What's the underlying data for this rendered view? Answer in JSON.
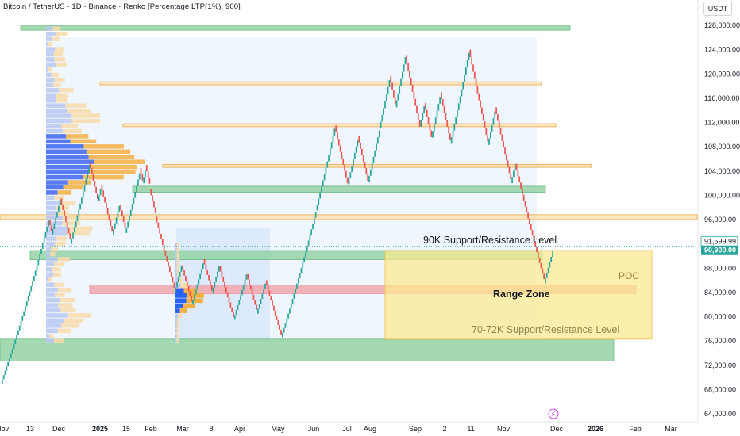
{
  "header": {
    "title": "Bitcoin / TetherUS · 1D · Binance · Renko [Percentage LTP(1%), 900]",
    "currency": "USDT"
  },
  "colors": {
    "up": "#26a69a",
    "down": "#ef5350",
    "green_zone": "#8fcf9f",
    "red_zone": "#f2a2a6",
    "orange_line": "#f7c77a",
    "range_zone": "#fbe98e",
    "vp_blue": "#2962ff",
    "vp_orange": "#f5b042",
    "last_price_bg": "#26a69a"
  },
  "chart_data": {
    "type": "line",
    "title": "Bitcoin / TetherUS · 1D · Binance · Renko [Percentage LTP(1%), 900]",
    "y_axis": {
      "ticks": [
        "64,000.00",
        "68,000.00",
        "72,000.00",
        "76,000.00",
        "80,000.00",
        "84,000.00",
        "88,000.00",
        "92,000.00",
        "96,000.00",
        "100,000.00",
        "104,000.00",
        "108,000.00",
        "112,000.00",
        "116,000.00",
        "120,000.00",
        "124,000.00",
        "128,000.00"
      ],
      "ylim": [
        62000,
        130500
      ],
      "position": "right"
    },
    "x_axis": {
      "ticks": [
        {
          "label": "Nov",
          "bold": false
        },
        {
          "label": "13",
          "bold": false
        },
        {
          "label": "Dec",
          "bold": false
        },
        {
          "label": "2025",
          "bold": true
        },
        {
          "label": "15",
          "bold": false
        },
        {
          "label": "Feb",
          "bold": false
        },
        {
          "label": "Mar",
          "bold": false
        },
        {
          "label": "8",
          "bold": false
        },
        {
          "label": "Apr",
          "bold": false
        },
        {
          "label": "May",
          "bold": false
        },
        {
          "label": "Jun",
          "bold": false
        },
        {
          "label": "Jul",
          "bold": false
        },
        {
          "label": "Aug",
          "bold": false
        },
        {
          "label": "Sep",
          "bold": false
        },
        {
          "label": "2",
          "bold": false
        },
        {
          "label": "11",
          "bold": false
        },
        {
          "label": "Nov",
          "bold": false
        },
        {
          "label": "Dec",
          "bold": false
        },
        {
          "label": "2026",
          "bold": true
        },
        {
          "label": "Feb",
          "bold": false
        },
        {
          "label": "Mar",
          "bold": false
        }
      ]
    },
    "series": [
      {
        "brick_pct": 1,
        "path": [
          [
            0,
            69000
          ],
          [
            1,
            96000
          ],
          [
            2,
            93500
          ],
          [
            3,
            99500
          ],
          [
            4,
            92000
          ],
          [
            5,
            105500
          ],
          [
            6,
            99000
          ],
          [
            7,
            101800
          ],
          [
            8,
            93500
          ],
          [
            9,
            98500
          ],
          [
            10,
            93800
          ],
          [
            11,
            104500
          ],
          [
            12,
            102000
          ],
          [
            13,
            105000
          ],
          [
            14,
            101000
          ],
          [
            15,
            96500
          ],
          [
            16,
            84000
          ],
          [
            17,
            88500
          ],
          [
            18,
            82000
          ],
          [
            19,
            89500
          ],
          [
            20,
            84000
          ],
          [
            21,
            88300
          ],
          [
            22,
            79500
          ],
          [
            23,
            87000
          ],
          [
            24,
            80500
          ],
          [
            25,
            86000
          ],
          [
            26,
            76600
          ],
          [
            27,
            97500
          ],
          [
            28,
            111500
          ],
          [
            29,
            101800
          ],
          [
            30,
            109800
          ],
          [
            31,
            102200
          ],
          [
            32,
            111000
          ],
          [
            33,
            119700
          ],
          [
            34,
            114500
          ],
          [
            35,
            123000
          ],
          [
            36,
            111300
          ],
          [
            37,
            115200
          ],
          [
            38,
            109500
          ],
          [
            39,
            117000
          ],
          [
            40,
            108500
          ],
          [
            41,
            124000
          ],
          [
            42,
            112200
          ],
          [
            43,
            108300
          ],
          [
            44,
            114500
          ],
          [
            45,
            102000
          ],
          [
            46,
            105200
          ],
          [
            47,
            85500
          ],
          [
            48,
            91600
          ]
        ]
      }
    ],
    "last_price": "91,599.99",
    "secondary_price": "90,900.00",
    "zones": [
      {
        "kind": "green",
        "y0": 127200,
        "y1": 128000
      },
      {
        "kind": "orange",
        "y0": 118200,
        "y1": 118700
      },
      {
        "kind": "orange",
        "y0": 111300,
        "y1": 111800
      },
      {
        "kind": "orange",
        "y0": 104600,
        "y1": 105100
      },
      {
        "kind": "green",
        "y0": 100500,
        "y1": 101500
      },
      {
        "kind": "orange",
        "y0": 96000,
        "y1": 96800
      },
      {
        "kind": "green",
        "y0": 89400,
        "y1": 90900
      },
      {
        "kind": "red",
        "y0": 83800,
        "y1": 85200
      },
      {
        "kind": "green",
        "y0": 72700,
        "y1": 76300
      },
      {
        "kind": "range",
        "y0": 76300,
        "y1": 90900
      }
    ],
    "volume_profile": [
      {
        "levels": 62,
        "y0": 75500,
        "y1": 127800
      },
      {
        "levels": 20,
        "y0": 75500,
        "y1": 92200
      }
    ],
    "annotations": [
      {
        "text": "90K Support/Resistance Level",
        "kind": "label"
      },
      {
        "text": "POC",
        "kind": "label"
      },
      {
        "text": "Range Zone",
        "kind": "label"
      },
      {
        "text": "70-72K Support/Resistance Level",
        "kind": "label"
      }
    ]
  }
}
